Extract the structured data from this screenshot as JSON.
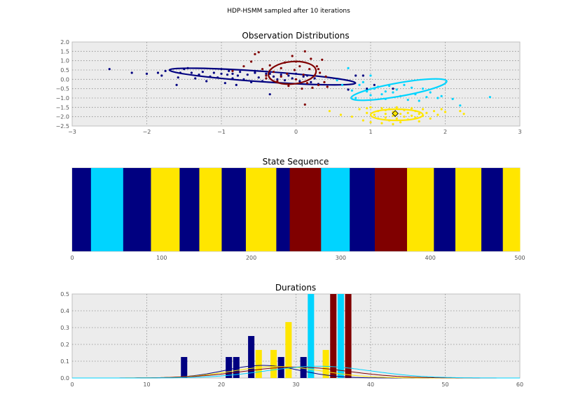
{
  "figure": {
    "suptitle": "HDP-HSMM sampled after 10 iterations"
  },
  "chart_data": [
    {
      "type": "scatter",
      "title": "Observation Distributions",
      "xlim": [
        -3,
        3
      ],
      "ylim": [
        -2.5,
        2.0
      ],
      "xticks": [
        "−3",
        "−2",
        "−1",
        "0",
        "1",
        "2",
        "3"
      ],
      "yticks": [
        "2.0",
        "1.5",
        "1.0",
        "0.5",
        "0.0",
        "−0.5",
        "−1.0",
        "−1.5",
        "−2.0",
        "−2.5"
      ],
      "grid": true,
      "series": [
        {
          "color": "#000080",
          "points": [
            [
              -2.5,
              0.55
            ],
            [
              -2.2,
              0.35
            ],
            [
              -2.0,
              0.3
            ],
            [
              -1.85,
              0.35
            ],
            [
              -1.8,
              0.2
            ],
            [
              -1.75,
              0.45
            ],
            [
              -1.6,
              -0.3
            ],
            [
              -1.58,
              0.1
            ],
            [
              -1.55,
              0.35
            ],
            [
              -1.5,
              0.55
            ],
            [
              -1.45,
              0.6
            ],
            [
              -1.4,
              0.35
            ],
            [
              -1.35,
              0.05
            ],
            [
              -1.3,
              0.25
            ],
            [
              -1.25,
              0.4
            ],
            [
              -1.2,
              -0.1
            ],
            [
              -1.15,
              0.15
            ],
            [
              -1.1,
              0.35
            ],
            [
              -1.05,
              0.1
            ],
            [
              -1.0,
              0.55
            ],
            [
              -0.95,
              -0.2
            ],
            [
              -0.92,
              0.25
            ],
            [
              -0.9,
              0.45
            ],
            [
              -0.85,
              0.05
            ],
            [
              -0.8,
              -0.3
            ],
            [
              -0.78,
              0.2
            ],
            [
              -0.75,
              0.4
            ],
            [
              -0.7,
              0.0
            ],
            [
              -0.65,
              0.25
            ],
            [
              -0.6,
              -0.15
            ],
            [
              -0.55,
              0.35
            ],
            [
              -0.5,
              0.1
            ],
            [
              -0.45,
              -0.1
            ],
            [
              -0.4,
              0.3
            ],
            [
              -0.35,
              -0.8
            ],
            [
              -0.3,
              0.15
            ],
            [
              -0.25,
              0.0
            ],
            [
              -0.2,
              0.25
            ],
            [
              -0.15,
              -0.05
            ],
            [
              -0.1,
              0.2
            ],
            [
              -0.05,
              0.05
            ],
            [
              0.0,
              0.3
            ],
            [
              0.05,
              -0.1
            ],
            [
              0.1,
              0.15
            ],
            [
              0.15,
              0.2
            ],
            [
              0.2,
              -0.15
            ],
            [
              0.25,
              0.05
            ],
            [
              0.3,
              -0.25
            ],
            [
              0.7,
              -0.55
            ],
            [
              0.8,
              0.2
            ],
            [
              0.9,
              0.2
            ],
            [
              0.95,
              -0.5
            ],
            [
              1.05,
              -0.3
            ],
            [
              1.3,
              -0.5
            ],
            [
              -1.0,
              0.3
            ],
            [
              -0.55,
              0.45
            ],
            [
              -0.85,
              0.3
            ],
            [
              -0.35,
              0.3
            ]
          ],
          "ellipse": {
            "cx": -0.45,
            "cy": 0.15,
            "rx": 1.25,
            "ry": 0.28,
            "angle_deg": -4
          }
        },
        {
          "color": "#800000",
          "points": [
            [
              -0.85,
              0.45
            ],
            [
              -0.7,
              0.7
            ],
            [
              -0.6,
              0.95
            ],
            [
              -0.55,
              1.35
            ],
            [
              -0.5,
              1.45
            ],
            [
              -0.45,
              0.55
            ],
            [
              -0.4,
              0.2
            ],
            [
              -0.35,
              0.75
            ],
            [
              -0.3,
              0.4
            ],
            [
              -0.25,
              -0.1
            ],
            [
              -0.2,
              0.6
            ],
            [
              -0.15,
              0.9
            ],
            [
              -0.12,
              0.3
            ],
            [
              -0.1,
              -0.35
            ],
            [
              -0.05,
              1.25
            ],
            [
              -0.02,
              0.5
            ],
            [
              0.0,
              0.0
            ],
            [
              0.05,
              0.7
            ],
            [
              0.08,
              -0.5
            ],
            [
              0.1,
              0.25
            ],
            [
              0.12,
              1.5
            ],
            [
              0.15,
              -0.2
            ],
            [
              0.18,
              0.55
            ],
            [
              0.2,
              1.1
            ],
            [
              0.22,
              -0.45
            ],
            [
              0.25,
              0.2
            ],
            [
              0.28,
              0.7
            ],
            [
              0.3,
              -0.3
            ],
            [
              0.32,
              0.35
            ],
            [
              0.35,
              1.05
            ],
            [
              0.38,
              -0.15
            ],
            [
              0.4,
              0.15
            ],
            [
              0.42,
              -0.4
            ],
            [
              0.12,
              -1.35
            ],
            [
              -0.4,
              0.05
            ],
            [
              0.0,
              0.95
            ],
            [
              -0.2,
              0.15
            ],
            [
              0.3,
              0.55
            ]
          ],
          "ellipse": {
            "cx": -0.05,
            "cy": 0.35,
            "rx": 0.32,
            "ry": 0.6,
            "angle_deg": 5
          }
        },
        {
          "color": "#00d4ff",
          "points": [
            [
              0.55,
              -0.05
            ],
            [
              0.62,
              -0.3
            ],
            [
              0.7,
              0.6
            ],
            [
              0.75,
              -0.6
            ],
            [
              0.8,
              -1.0
            ],
            [
              0.85,
              -0.3
            ],
            [
              0.9,
              -0.15
            ],
            [
              0.95,
              -0.65
            ],
            [
              1.0,
              0.2
            ],
            [
              1.05,
              -0.5
            ],
            [
              1.1,
              -0.4
            ],
            [
              1.15,
              -0.8
            ],
            [
              1.2,
              -1.05
            ],
            [
              1.25,
              -0.35
            ],
            [
              1.3,
              -0.7
            ],
            [
              1.35,
              -0.55
            ],
            [
              1.4,
              -0.9
            ],
            [
              1.45,
              -0.3
            ],
            [
              1.5,
              -1.1
            ],
            [
              1.55,
              -0.45
            ],
            [
              1.6,
              -0.8
            ],
            [
              1.65,
              -1.15
            ],
            [
              1.7,
              -0.5
            ],
            [
              1.75,
              -0.95
            ],
            [
              1.8,
              -0.7
            ],
            [
              1.9,
              -1.0
            ],
            [
              1.95,
              -0.9
            ],
            [
              2.1,
              -1.05
            ],
            [
              2.2,
              -1.4
            ],
            [
              2.6,
              -0.95
            ],
            [
              1.2,
              -0.65
            ],
            [
              1.0,
              -0.85
            ]
          ],
          "ellipse": {
            "cx": 1.38,
            "cy": -0.55,
            "rx": 0.65,
            "ry": 0.36,
            "angle_deg": 10
          }
        },
        {
          "color": "#ffe600",
          "points": [
            [
              0.45,
              -1.7
            ],
            [
              0.6,
              -1.9
            ],
            [
              0.75,
              -2.0
            ],
            [
              0.85,
              -1.6
            ],
            [
              0.9,
              -2.2
            ],
            [
              0.95,
              -1.8
            ],
            [
              1.0,
              -1.5
            ],
            [
              1.0,
              -2.3
            ],
            [
              1.05,
              -1.9
            ],
            [
              1.1,
              -1.7
            ],
            [
              1.1,
              -2.1
            ],
            [
              1.15,
              -1.55
            ],
            [
              1.15,
              -2.35
            ],
            [
              1.2,
              -1.85
            ],
            [
              1.2,
              -2.05
            ],
            [
              1.25,
              -1.6
            ],
            [
              1.25,
              -2.2
            ],
            [
              1.3,
              -1.75
            ],
            [
              1.3,
              -1.95
            ],
            [
              1.35,
              -2.1
            ],
            [
              1.35,
              -1.5
            ],
            [
              1.4,
              -1.85
            ],
            [
              1.4,
              -2.3
            ],
            [
              1.45,
              -1.65
            ],
            [
              1.45,
              -2.0
            ],
            [
              1.5,
              -1.8
            ],
            [
              1.5,
              -2.15
            ],
            [
              1.55,
              -1.55
            ],
            [
              1.55,
              -1.95
            ],
            [
              1.6,
              -2.05
            ],
            [
              1.6,
              -1.7
            ],
            [
              1.65,
              -1.85
            ],
            [
              1.65,
              -2.25
            ],
            [
              1.7,
              -1.6
            ],
            [
              1.7,
              -1.95
            ],
            [
              1.75,
              -1.8
            ],
            [
              1.8,
              -2.1
            ],
            [
              1.85,
              -1.7
            ],
            [
              1.9,
              -1.9
            ],
            [
              1.95,
              -1.6
            ],
            [
              2.0,
              -1.75
            ],
            [
              2.2,
              -1.7
            ],
            [
              2.25,
              -1.85
            ],
            [
              0.95,
              -1.55
            ],
            [
              1.3,
              -2.4
            ],
            [
              1.2,
              -1.65
            ]
          ],
          "ellipse": {
            "cx": 1.35,
            "cy": -1.9,
            "rx": 0.35,
            "ry": 0.3,
            "angle_deg": 0
          }
        }
      ],
      "highlight_point": {
        "x": 1.33,
        "y": -1.83
      }
    },
    {
      "type": "heatmap",
      "title": "State Sequence",
      "xlim": [
        0,
        500
      ],
      "xticks": [
        "0",
        "100",
        "200",
        "300",
        "400",
        "500"
      ],
      "segments": [
        {
          "start": 0,
          "end": 21,
          "color": "#000080"
        },
        {
          "start": 21,
          "end": 57,
          "color": "#00d4ff"
        },
        {
          "start": 57,
          "end": 88,
          "color": "#000080"
        },
        {
          "start": 88,
          "end": 120,
          "color": "#ffe600"
        },
        {
          "start": 120,
          "end": 142,
          "color": "#000080"
        },
        {
          "start": 142,
          "end": 167,
          "color": "#ffe600"
        },
        {
          "start": 167,
          "end": 194,
          "color": "#000080"
        },
        {
          "start": 194,
          "end": 228,
          "color": "#ffe600"
        },
        {
          "start": 228,
          "end": 243,
          "color": "#000080"
        },
        {
          "start": 243,
          "end": 278,
          "color": "#800000"
        },
        {
          "start": 278,
          "end": 310,
          "color": "#00d4ff"
        },
        {
          "start": 310,
          "end": 338,
          "color": "#000080"
        },
        {
          "start": 338,
          "end": 374,
          "color": "#800000"
        },
        {
          "start": 374,
          "end": 404,
          "color": "#ffe600"
        },
        {
          "start": 404,
          "end": 428,
          "color": "#000080"
        },
        {
          "start": 428,
          "end": 457,
          "color": "#ffe600"
        },
        {
          "start": 457,
          "end": 481,
          "color": "#000080"
        },
        {
          "start": 481,
          "end": 500,
          "color": "#ffe600"
        }
      ]
    },
    {
      "type": "bar",
      "title": "Durations",
      "xlim": [
        0,
        60
      ],
      "ylim": [
        0,
        0.5
      ],
      "xticks": [
        "0",
        "10",
        "20",
        "30",
        "40",
        "50",
        "60"
      ],
      "yticks": [
        "0.5",
        "0.4",
        "0.3",
        "0.2",
        "0.1",
        "0.0"
      ],
      "grid": true,
      "bars": [
        {
          "x": 15,
          "value": 0.125,
          "color": "#000080"
        },
        {
          "x": 21,
          "value": 0.125,
          "color": "#000080"
        },
        {
          "x": 22,
          "value": 0.125,
          "color": "#000080"
        },
        {
          "x": 24,
          "value": 0.25,
          "color": "#000080"
        },
        {
          "x": 25,
          "value": 0.167,
          "color": "#ffe600"
        },
        {
          "x": 27,
          "value": 0.167,
          "color": "#ffe600"
        },
        {
          "x": 28,
          "value": 0.125,
          "color": "#000080"
        },
        {
          "x": 29,
          "value": 0.333,
          "color": "#ffe600"
        },
        {
          "x": 31,
          "value": 0.125,
          "color": "#000080"
        },
        {
          "x": 32,
          "value": 0.167,
          "color": "#ffe600"
        },
        {
          "x": 32,
          "value": 0.5,
          "color": "#00d4ff"
        },
        {
          "x": 34,
          "value": 0.167,
          "color": "#ffe600"
        },
        {
          "x": 35,
          "value": 0.5,
          "color": "#800000"
        },
        {
          "x": 36,
          "value": 0.5,
          "color": "#00d4ff"
        },
        {
          "x": 37,
          "value": 0.5,
          "color": "#800000"
        }
      ],
      "curves": [
        {
          "color": "#000080",
          "mean": 25.5,
          "sd": 5.0,
          "peak": 0.075
        },
        {
          "color": "#ffe600",
          "mean": 27.5,
          "sd": 6.0,
          "peak": 0.068
        },
        {
          "color": "#800000",
          "mean": 30.0,
          "sd": 7.0,
          "peak": 0.065
        },
        {
          "color": "#00d4ff",
          "mean": 33.0,
          "sd": 7.0,
          "peak": 0.07
        }
      ]
    }
  ]
}
